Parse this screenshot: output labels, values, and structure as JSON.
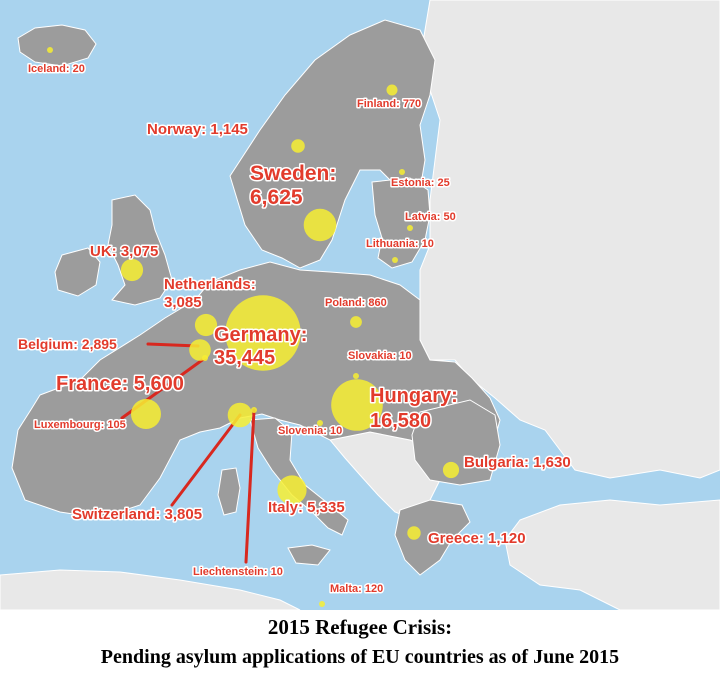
{
  "caption": {
    "title": "2015 Refugee Crisis:",
    "subtitle": "Pending asylum applications of EU countries as of June 2015"
  },
  "colors": {
    "sea": "#a9d3ee",
    "eu_land": "#9c9c9c",
    "non_eu_land": "#e8e8e8",
    "border": "#ffffff",
    "bubble": "#f7ef32",
    "label": "#e23b2c",
    "leader_line": "#d8281f"
  },
  "countries": [
    {
      "id": "iceland",
      "label": "Iceland: 20",
      "value": 20
    },
    {
      "id": "norway",
      "label": "Norway: 1,145",
      "value": 1145
    },
    {
      "id": "finland",
      "label": "Finland: 770",
      "value": 770
    },
    {
      "id": "sweden",
      "label_line1": "Sweden:",
      "label_line2": "6,625",
      "value": 6625
    },
    {
      "id": "estonia",
      "label": "Estonia: 25",
      "value": 25
    },
    {
      "id": "latvia",
      "label": "Latvia: 50",
      "value": 50
    },
    {
      "id": "lithuania",
      "label": "Lithuania: 10",
      "value": 10
    },
    {
      "id": "uk",
      "label": "UK: 3,075",
      "value": 3075
    },
    {
      "id": "netherlands",
      "label_line1": "Netherlands:",
      "label_line2": "3,085",
      "value": 3085
    },
    {
      "id": "poland",
      "label": "Poland: 860",
      "value": 860
    },
    {
      "id": "belgium",
      "label": "Belgium: 2,895",
      "value": 2895
    },
    {
      "id": "germany",
      "label_line1": "Germany:",
      "label_line2": "35,445",
      "value": 35445
    },
    {
      "id": "slovakia",
      "label": "Slovakia: 10",
      "value": 10
    },
    {
      "id": "france",
      "label": "France: 5,600",
      "value": 5600
    },
    {
      "id": "hungary",
      "label_line1": "Hungary:",
      "label_line2": "16,580",
      "value": 16580
    },
    {
      "id": "luxembourg",
      "label": "Luxembourg: 105",
      "value": 105
    },
    {
      "id": "slovenia",
      "label": "Slovenia: 10",
      "value": 10
    },
    {
      "id": "bulgaria",
      "label": "Bulgaria: 1,630",
      "value": 1630
    },
    {
      "id": "switzerland",
      "label": "Switzerland: 3,805",
      "value": 3805
    },
    {
      "id": "italy",
      "label": "Italy: 5,335",
      "value": 5335
    },
    {
      "id": "greece",
      "label": "Greece: 1,120",
      "value": 1120
    },
    {
      "id": "liechtenstein",
      "label": "Liechtenstein: 10",
      "value": 10
    },
    {
      "id": "malta",
      "label": "Malta: 120",
      "value": 120
    }
  ]
}
